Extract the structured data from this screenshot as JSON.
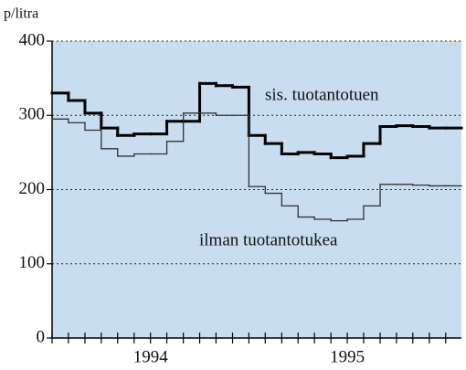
{
  "chart_data": {
    "type": "step",
    "y_axis_label": "p/litra",
    "x": [
      1994.0,
      1994.083,
      1994.167,
      1994.25,
      1994.333,
      1994.417,
      1994.5,
      1994.583,
      1994.667,
      1994.75,
      1994.833,
      1994.917,
      1995.0,
      1995.083,
      1995.167,
      1995.25,
      1995.333,
      1995.417,
      1995.5,
      1995.583,
      1995.667,
      1995.75,
      1995.833,
      1995.917,
      1996.0
    ],
    "series": [
      {
        "name": "sis. tuotantotuen",
        "color": "#000000",
        "width": 3,
        "values": [
          330,
          320,
          303,
          283,
          273,
          275,
          275,
          292,
          292,
          343,
          340,
          338,
          273,
          262,
          248,
          250,
          248,
          243,
          245,
          262,
          285,
          286,
          285,
          283,
          283
        ]
      },
      {
        "name": "ilman tuotantotukea",
        "color": "#333333",
        "width": 1.3,
        "values": [
          295,
          290,
          280,
          255,
          245,
          248,
          248,
          265,
          303,
          303,
          300,
          300,
          204,
          195,
          178,
          163,
          160,
          158,
          160,
          178,
          207,
          207,
          206,
          205,
          205
        ]
      }
    ],
    "xlim": [
      1994.0,
      1996.08
    ],
    "xticks": [
      {
        "value": 1994.5,
        "label": "1994"
      },
      {
        "value": 1995.5,
        "label": "1995"
      }
    ],
    "ylim": [
      0,
      400
    ],
    "yticks": [
      0,
      100,
      200,
      300,
      400
    ],
    "grid": true,
    "background": "#c8def0"
  }
}
